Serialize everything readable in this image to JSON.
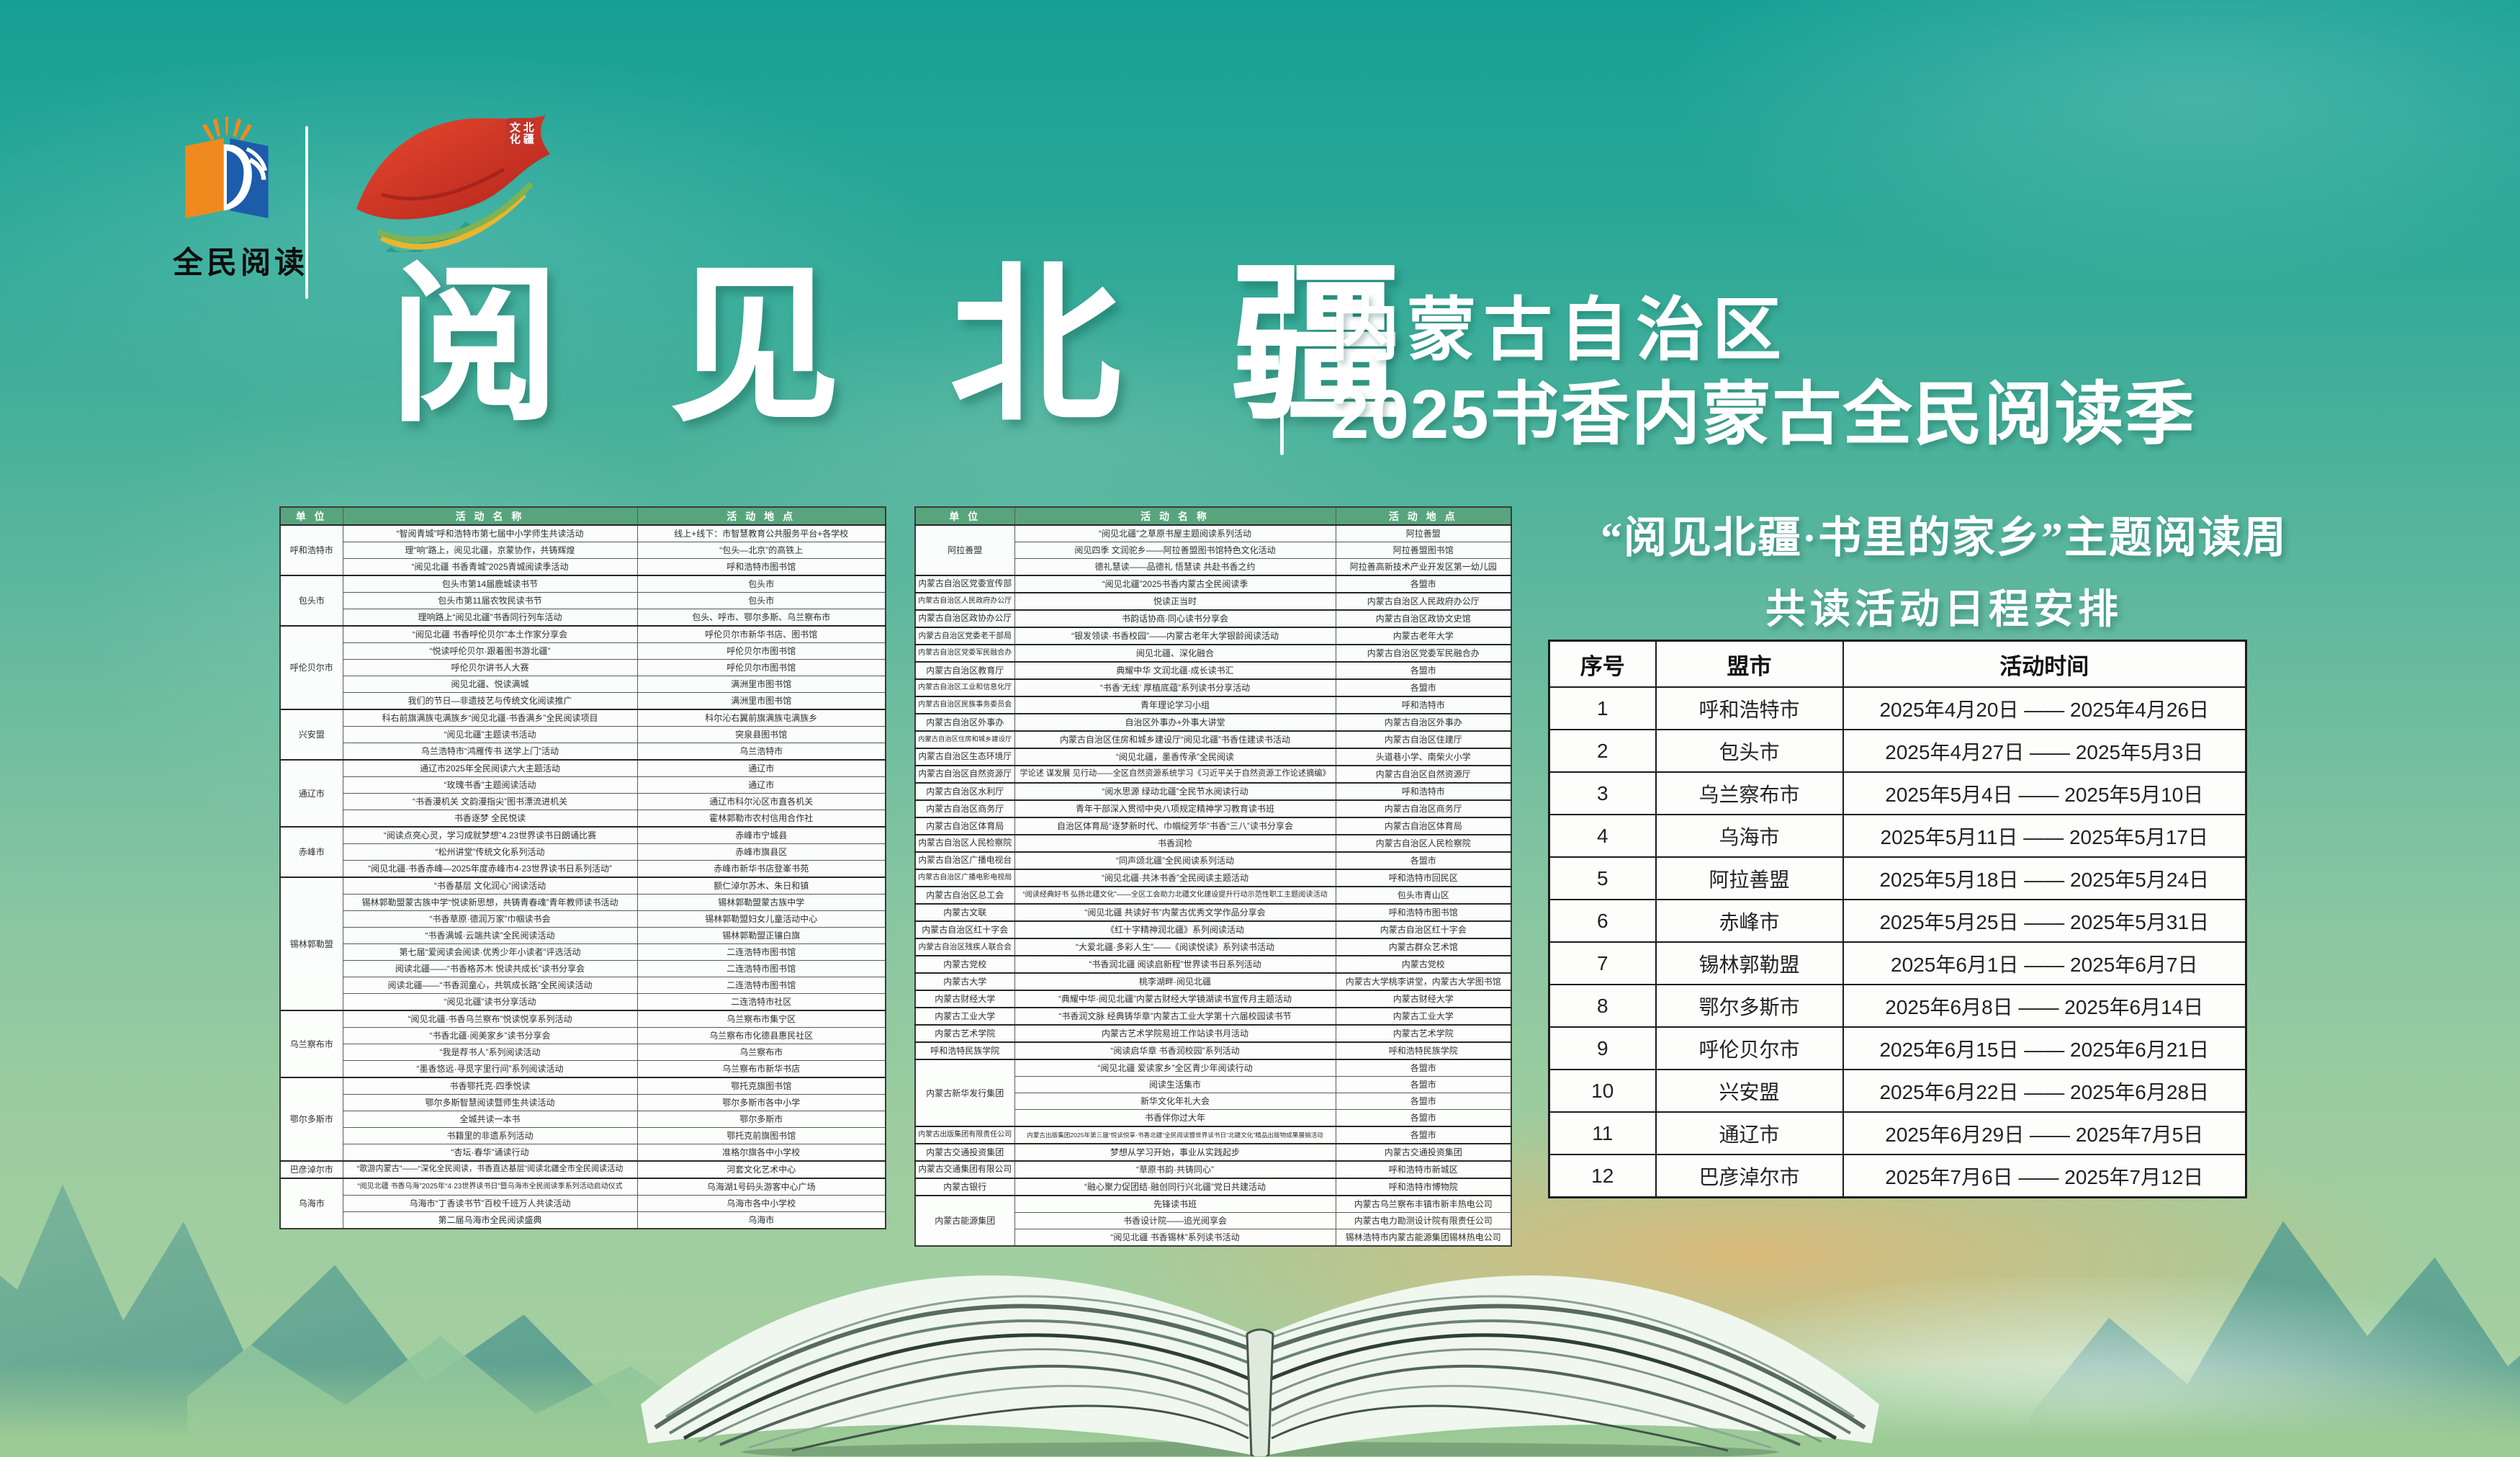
{
  "logos": {
    "reading_label": "全民阅读",
    "seal_label": "北疆文化"
  },
  "header": {
    "main_title": "阅 见 北 疆",
    "region_line": "内蒙古自治区",
    "season_line": "2025书香内蒙古全民阅读季"
  },
  "schedule": {
    "title_line1": "“阅见北疆·书里的家乡”主题阅读周",
    "title_line2": "共读活动日程安排",
    "headers": [
      "序号",
      "盟市",
      "活动时间"
    ],
    "rows": [
      [
        "1",
        "呼和浩特市",
        "2025年4月20日 —— 2025年4月26日"
      ],
      [
        "2",
        "包头市",
        "2025年4月27日 —— 2025年5月3日"
      ],
      [
        "3",
        "乌兰察布市",
        "2025年5月4日 —— 2025年5月10日"
      ],
      [
        "4",
        "乌海市",
        "2025年5月11日 —— 2025年5月17日"
      ],
      [
        "5",
        "阿拉善盟",
        "2025年5月18日 —— 2025年5月24日"
      ],
      [
        "6",
        "赤峰市",
        "2025年5月25日 —— 2025年5月31日"
      ],
      [
        "7",
        "锡林郭勒盟",
        "2025年6月1日 —— 2025年6月7日"
      ],
      [
        "8",
        "鄂尔多斯市",
        "2025年6月8日 —— 2025年6月14日"
      ],
      [
        "9",
        "呼伦贝尔市",
        "2025年6月15日 —— 2025年6月21日"
      ],
      [
        "10",
        "兴安盟",
        "2025年6月22日 —— 2025年6月28日"
      ],
      [
        "11",
        "通辽市",
        "2025年6月29日 —— 2025年7月5日"
      ],
      [
        "12",
        "巴彦淖尔市",
        "2025年7月6日 —— 2025年7月12日"
      ]
    ]
  },
  "left_table": {
    "headers": [
      "单 位",
      "活 动 名 称",
      "活 动 地 点"
    ],
    "groups": [
      {
        "unit": "呼和浩特市",
        "rows": [
          [
            "“智阅青城”呼和浩特市第七届中小学师生共读活动",
            "线上+线下：市智慧教育公共服务平台+各学校"
          ],
          [
            "理“响”路上，阅见北疆，京蒙协作，共铸辉煌",
            "“包头—北京”的高铁上"
          ],
          [
            "“阅见北疆 书香青城”2025青城阅读季活动",
            "呼和浩特市图书馆"
          ]
        ]
      },
      {
        "unit": "包头市",
        "rows": [
          [
            "包头市第14届鹿城读书节",
            "包头市"
          ],
          [
            "包头市第11届农牧民读书节",
            "包头市"
          ],
          [
            "理响路上“阅见北疆”书香同行列车活动",
            "包头、呼市、鄂尔多斯、乌兰察布市"
          ]
        ]
      },
      {
        "unit": "呼伦贝尔市",
        "rows": [
          [
            "“阅见北疆 书香呼伦贝尔”本土作家分享会",
            "呼伦贝尔市新华书店、图书馆"
          ],
          [
            "“悦读呼伦贝尔·跟着图书游北疆”",
            "呼伦贝尔市图书馆"
          ],
          [
            "呼伦贝尔讲书人大赛",
            "呼伦贝尔市图书馆"
          ],
          [
            "阅见北疆、悦读满城",
            "满洲里市图书馆"
          ],
          [
            "我们的节日—非遗技艺与传统文化阅读推广",
            "满洲里市图书馆"
          ]
        ]
      },
      {
        "unit": "兴安盟",
        "rows": [
          [
            "科右前旗满族屯满族乡“阅见北疆·书香满乡”全民阅读项目",
            "科尔沁右翼前旗满族屯满族乡"
          ],
          [
            "“阅见北疆”主题读书活动",
            "突泉县图书馆"
          ],
          [
            "乌兰浩特市“鸿雁传书 送学上门”活动",
            "乌兰浩特市"
          ]
        ]
      },
      {
        "unit": "通辽市",
        "rows": [
          [
            "通辽市2025年全民阅读六大主题活动",
            "通辽市"
          ],
          [
            "“玫瑰书香”主题阅读活动",
            "通辽市"
          ],
          [
            "“书香漫机关 文韵漫指尖”图书漂流进机关",
            "通辽市科尔沁区市直各机关"
          ],
          [
            "书香逐梦 全民悦读",
            "霍林郭勒市农村信用合作社"
          ]
        ]
      },
      {
        "unit": "赤峰市",
        "rows": [
          [
            "“阅读点亮心灵，学习成就梦想”4.23世界读书日朗诵比赛",
            "赤峰市宁城县"
          ],
          [
            "“松州讲堂”传统文化系列活动",
            "赤峰市旗县区"
          ],
          [
            "“阅见北疆·书香赤峰—2025年度赤峰市4·23世界读书日系列活动”",
            "赤峰市新华书店登峯书苑"
          ]
        ]
      },
      {
        "unit": "锡林郭勒盟",
        "rows": [
          [
            "“书香基层 文化润心”阅读活动",
            "额仁淖尔苏木、朱日和镇"
          ],
          [
            "锡林郭勒盟蒙古族中学“悦读新思想，共铸青春魂”青年教师读书活动",
            "锡林郭勒盟蒙古族中学"
          ],
          [
            "“书香草原·德润万家”巾帼读书会",
            "锡林郭勒盟妇女儿童活动中心"
          ],
          [
            "“书香满城·云端共读”全民阅读活动",
            "锡林郭勒盟正镶白旗"
          ],
          [
            "第七届“爱阅读会阅读·优秀少年小读者”评选活动",
            "二连浩特市图书馆"
          ],
          [
            "阅读北疆——“书香格苏木 悦读共成长”读书分享会",
            "二连浩特市图书馆"
          ],
          [
            "阅读北疆——“书香润童心，共筑成长路”全民阅读活动",
            "二连浩特市图书馆"
          ],
          [
            "“阅见北疆”读书分享活动",
            "二连浩特市社区"
          ]
        ]
      },
      {
        "unit": "乌兰察布市",
        "rows": [
          [
            "“阅见北疆·书香乌兰察布”悦读悦享系列活动",
            "乌兰察布市集宁区"
          ],
          [
            "“书香北疆·阅美家乡”读书分享会",
            "乌兰察布市化德县惠民社区"
          ],
          [
            "“我是荐书人”系列阅读活动",
            "乌兰察布市"
          ],
          [
            "“墨香悠远·寻觅字里行间”系列阅读活动",
            "乌兰察布市新华书店"
          ]
        ]
      },
      {
        "unit": "鄂尔多斯市",
        "rows": [
          [
            "书香鄂托克·四季悦读",
            "鄂托克旗图书馆"
          ],
          [
            "鄂尔多斯智慧阅读暨师生共读活动",
            "鄂尔多斯市各中小学"
          ],
          [
            "全城共读一本书",
            "鄂尔多斯市"
          ],
          [
            "书籍里的非遗系列活动",
            "鄂托克前旗图书馆"
          ],
          [
            "“杏坛·春华”诵读行动",
            "准格尔旗各中小学校"
          ]
        ]
      },
      {
        "unit": "巴彦淖尔市",
        "rows": [
          [
            "“歌游内蒙古”——“深化全民阅读，书香直达基层”阅读北疆全市全民阅读活动",
            "河套文化艺术中心"
          ]
        ]
      },
      {
        "unit": "乌海市",
        "rows": [
          [
            "“阅见北疆 书香乌海”2025年“4·23世界读书日”暨乌海市全民阅读季系列活动启动仪式",
            "乌海湖1号码头游客中心广场"
          ],
          [
            "乌海市“丁香读书节”百校千班万人共读活动",
            "乌海市各中小学校"
          ],
          [
            "第二届乌海市全民阅读盛典",
            "乌海市"
          ]
        ]
      }
    ]
  },
  "middle_table": {
    "headers": [
      "单 位",
      "活 动 名 称",
      "活 动 地 点"
    ],
    "groups": [
      {
        "unit": "阿拉善盟",
        "rows": [
          [
            "“阅见北疆”之草原书屋主题阅读系列活动",
            "阿拉善盟"
          ],
          [
            "阅见四季 文润驼乡——阿拉善盟图书馆特色文化活动",
            "阿拉善盟图书馆"
          ],
          [
            "德礼慧读——品德礼 悟慧读 共赴书香之约",
            "阿拉善高新技术产业开发区第一幼儿园"
          ]
        ]
      },
      {
        "unit": "内蒙古自治区党委宣传部",
        "rows": [
          [
            "“阅见北疆”2025书香内蒙古全民阅读季",
            "各盟市"
          ]
        ]
      },
      {
        "unit": "内蒙古自治区人民政府办公厅",
        "rows": [
          [
            "悦读正当时",
            "内蒙古自治区人民政府办公厅"
          ]
        ]
      },
      {
        "unit": "内蒙古自治区政协办公厅",
        "rows": [
          [
            "书韵话协商·同心读书分享会",
            "内蒙古自治区政协文史馆"
          ]
        ]
      },
      {
        "unit": "内蒙古自治区党委老干部局",
        "rows": [
          [
            "“银发领读·书香校园”——内蒙古老年大学银龄阅读活动",
            "内蒙古老年大学"
          ]
        ]
      },
      {
        "unit": "内蒙古自治区党委军民融合办",
        "rows": [
          [
            "阅见北疆、深化融合",
            "内蒙古自治区党委军民融合办"
          ]
        ]
      },
      {
        "unit": "内蒙古自治区教育厅",
        "rows": [
          [
            "典耀中华 文润北疆·成长读书汇",
            "各盟市"
          ]
        ]
      },
      {
        "unit": "内蒙古自治区工业和信息化厅",
        "rows": [
          [
            "“书香‘无线’ 厚植底蕴”系列读书分享活动",
            "各盟市"
          ]
        ]
      },
      {
        "unit": "内蒙古自治区民族事务委员会",
        "rows": [
          [
            "青年理论学习小组",
            "呼和浩特市"
          ]
        ]
      },
      {
        "unit": "内蒙古自治区外事办",
        "rows": [
          [
            "自治区外事办+外事大讲堂",
            "内蒙古自治区外事办"
          ]
        ]
      },
      {
        "unit": "内蒙古自治区住房和城乡建设厅",
        "rows": [
          [
            "内蒙古自治区住房和城乡建设厅“阅见北疆”书香住建读书活动",
            "内蒙古自治区住建厅"
          ]
        ]
      },
      {
        "unit": "内蒙古自治区生态环境厅",
        "rows": [
          [
            "“阅见北疆，墨香传承”全民阅读",
            "头道巷小学、南柴火小学"
          ]
        ]
      },
      {
        "unit": "内蒙古自治区自然资源厅",
        "rows": [
          [
            "学论述 谋发展 见行动——全区自然资源系统学习《习近平关于自然资源工作论述摘编》",
            "内蒙古自治区自然资源厅"
          ]
        ]
      },
      {
        "unit": "内蒙古自治区水利厅",
        "rows": [
          [
            "“阅水思源 绿动北疆”全民节水阅读行动",
            "呼和浩特市"
          ]
        ]
      },
      {
        "unit": "内蒙古自治区商务厅",
        "rows": [
          [
            "青年干部深入贯彻中央八项规定精神学习教育读书班",
            "内蒙古自治区商务厅"
          ]
        ]
      },
      {
        "unit": "内蒙古自治区体育局",
        "rows": [
          [
            "自治区体育局“逐梦新时代、巾帼绽芳华”书香“三八”读书分享会",
            "内蒙古自治区体育局"
          ]
        ]
      },
      {
        "unit": "内蒙古自治区人民检察院",
        "rows": [
          [
            "书香润检",
            "内蒙古自治区人民检察院"
          ]
        ]
      },
      {
        "unit": "内蒙古自治区广播电视台",
        "rows": [
          [
            "“同声颂北疆”全民阅读系列活动",
            "各盟市"
          ]
        ]
      },
      {
        "unit": "内蒙古自治区广播电影电视局",
        "rows": [
          [
            "“阅见北疆·共沐书香”全民阅读主题活动",
            "呼和浩特市回民区"
          ]
        ]
      },
      {
        "unit": "内蒙古自治区总工会",
        "rows": [
          [
            "“阅读经典好书 弘扬北疆文化”——全区工会助力北疆文化建设提升行动示范性职工主题阅读活动",
            "包头市青山区"
          ]
        ]
      },
      {
        "unit": "内蒙古文联",
        "rows": [
          [
            "“阅见北疆 共读好书”内蒙古优秀文学作品分享会",
            "呼和浩特市图书馆"
          ]
        ]
      },
      {
        "unit": "内蒙古自治区红十字会",
        "rows": [
          [
            "《红十字精神润北疆》系列阅读活动",
            "内蒙古自治区红十字会"
          ]
        ]
      },
      {
        "unit": "内蒙古自治区残疾人联合会",
        "rows": [
          [
            "“大爱北疆·多彩人生”——《阅读悦读》系列读书活动",
            "内蒙古群众艺术馆"
          ]
        ]
      },
      {
        "unit": "内蒙古党校",
        "rows": [
          [
            "“书香润北疆 阅读启新程”世界读书日系列活动",
            "内蒙古党校"
          ]
        ]
      },
      {
        "unit": "内蒙古大学",
        "rows": [
          [
            "桃李湖畔·阅见北疆",
            "内蒙古大学桃李讲堂，内蒙古大学图书馆"
          ]
        ]
      },
      {
        "unit": "内蒙古财经大学",
        "rows": [
          [
            "“典耀中华·阅见北疆”内蒙古财经大学镜湖读书宣传月主题活动",
            "内蒙古财经大学"
          ]
        ]
      },
      {
        "unit": "内蒙古工业大学",
        "rows": [
          [
            "“书香润文脉 经典铸华章”内蒙古工业大学第十六届校园读书节",
            "内蒙古工业大学"
          ]
        ]
      },
      {
        "unit": "内蒙古艺术学院",
        "rows": [
          [
            "内蒙古艺术学院易班工作站读书月活动",
            "内蒙古艺术学院"
          ]
        ]
      },
      {
        "unit": "呼和浩特民族学院",
        "rows": [
          [
            "“阅读启华章 书香润校园”系列活动",
            "呼和浩特民族学院"
          ]
        ]
      },
      {
        "unit": "内蒙古新华发行集团",
        "rows": [
          [
            "“阅见北疆 爱读家乡”全区青少年阅读行动",
            "各盟市"
          ],
          [
            "阅读生活集市",
            "各盟市"
          ],
          [
            "新华文化年礼大会",
            "各盟市"
          ],
          [
            "书香伴你过大年",
            "各盟市"
          ]
        ]
      },
      {
        "unit": "内蒙古出版集团有限责任公司",
        "rows": [
          [
            "内蒙古出版集团2025年第三届“悦读悦享·书香北疆”全民阅读暨世界读书日“北疆文化”精品出版物成果展销活动",
            "各盟市"
          ]
        ]
      },
      {
        "unit": "内蒙古交通投资集团",
        "rows": [
          [
            "梦想从学习开始，事业从实践起步",
            "内蒙古交通投资集团"
          ]
        ]
      },
      {
        "unit": "内蒙古交通集团有限公司",
        "rows": [
          [
            "“草原书韵·共铸同心”",
            "呼和浩特市新城区"
          ]
        ]
      },
      {
        "unit": "内蒙古银行",
        "rows": [
          [
            "“融心聚力促团结·融创同行兴北疆”党日共建活动",
            "呼和浩特市博物院"
          ]
        ]
      },
      {
        "unit": "内蒙古能源集团",
        "rows": [
          [
            "先锋读书班",
            "内蒙古乌兰察布丰镇市新丰热电公司"
          ],
          [
            "书香设计院——追光阅享会",
            "内蒙古电力勘测设计院有限责任公司"
          ],
          [
            "“阅见北疆 书香锡林”系列读书活动",
            "锡林浩特市内蒙古能源集团锡林热电公司"
          ]
        ]
      }
    ]
  }
}
